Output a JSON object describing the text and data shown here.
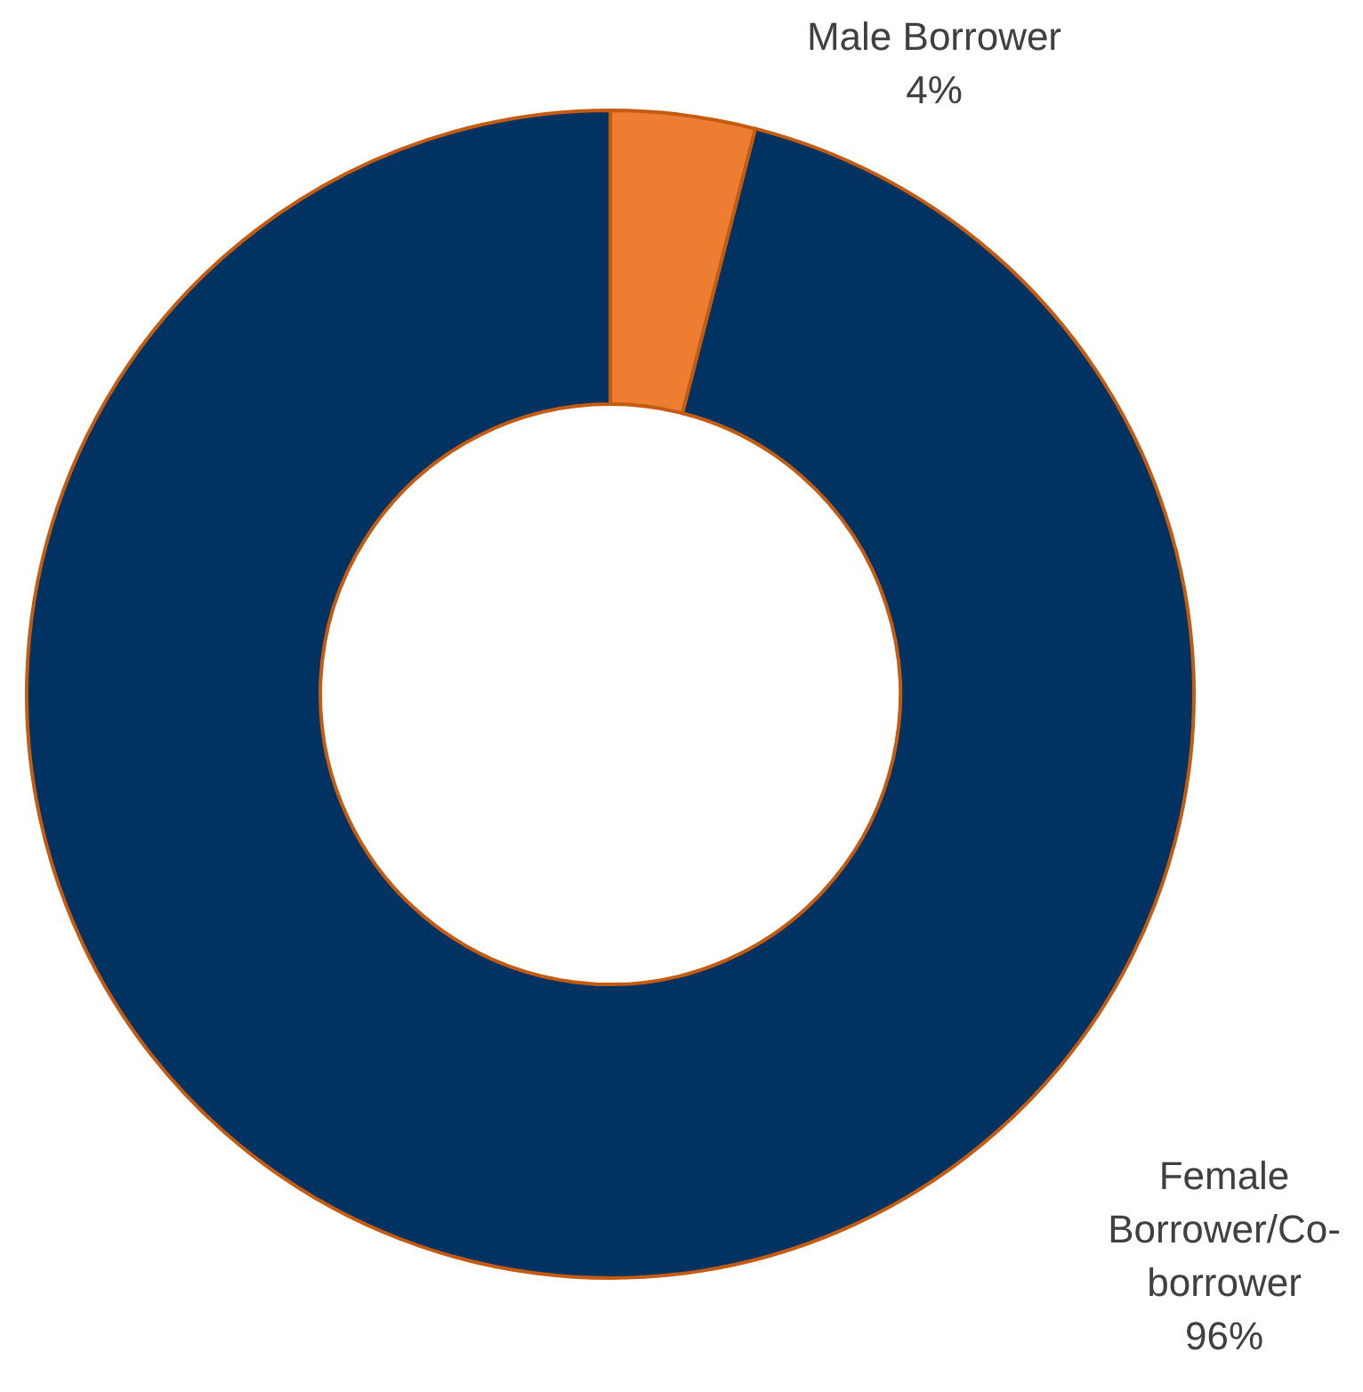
{
  "chart_data": {
    "type": "donut",
    "categories": [
      "Male Borrower",
      "Female Borrower/Co-borrower"
    ],
    "values": [
      4,
      96
    ],
    "value_labels": [
      "4%",
      "96%"
    ],
    "colors": [
      "#ed7d31",
      "#003262"
    ]
  }
}
